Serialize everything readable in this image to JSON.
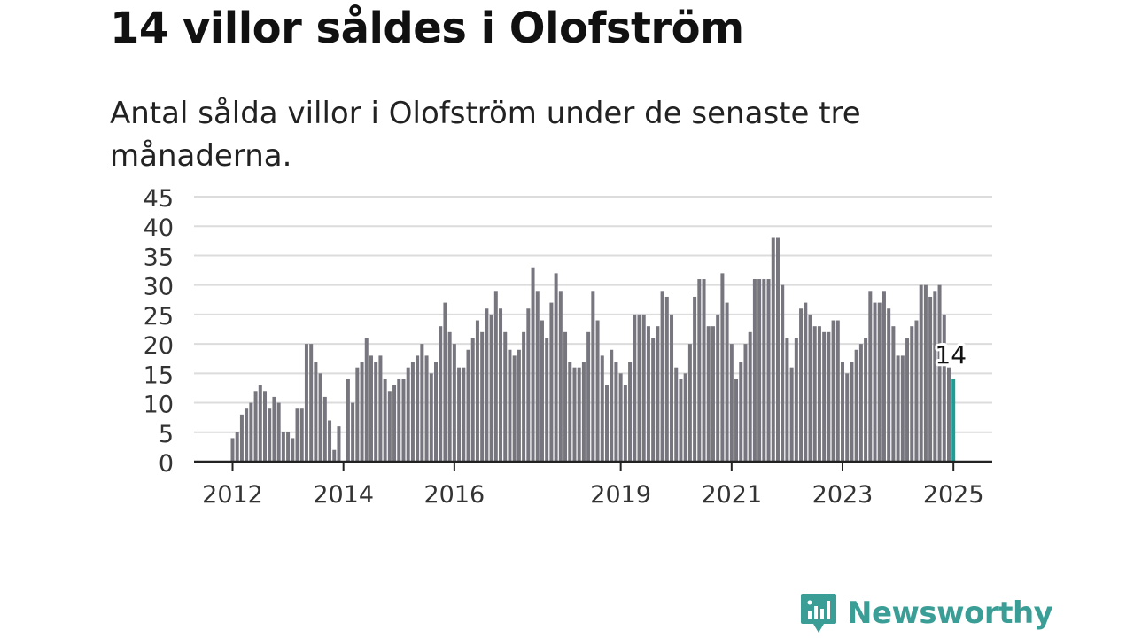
{
  "title": "14 villor såldes i Olofström",
  "subtitle": "Antal sålda villor i Olofström under de senaste tre månaderna.",
  "brand": {
    "name": "Newsworthy",
    "icon": "newsworthy-logo-icon"
  },
  "colors": {
    "bar": "#77767e",
    "highlight": "#1a9e96",
    "grid": "#dcdcdc",
    "axis": "#222222",
    "text": "#333333",
    "brand": "#3a9e96"
  },
  "chart_data": {
    "type": "bar",
    "title": "14 villor såldes i Olofström",
    "xlabel": "",
    "ylabel": "",
    "ylim": [
      0,
      45
    ],
    "yticks": [
      0,
      5,
      10,
      15,
      20,
      25,
      30,
      35,
      40,
      45
    ],
    "grid": true,
    "start": "2012-01",
    "frequency": "monthly",
    "xticks": [
      {
        "label": "2012",
        "month": "2012-01"
      },
      {
        "label": "2014",
        "month": "2014-01"
      },
      {
        "label": "2016",
        "month": "2016-01"
      },
      {
        "label": "2019",
        "month": "2019-01"
      },
      {
        "label": "2021",
        "month": "2021-01"
      },
      {
        "label": "2023",
        "month": "2023-01"
      },
      {
        "label": "2025",
        "month": "2025-01"
      }
    ],
    "values": [
      4,
      5,
      8,
      9,
      10,
      12,
      13,
      12,
      9,
      11,
      10,
      5,
      5,
      4,
      9,
      9,
      20,
      20,
      17,
      15,
      11,
      7,
      2,
      6,
      0,
      14,
      10,
      16,
      17,
      21,
      18,
      17,
      18,
      14,
      12,
      13,
      14,
      14,
      16,
      17,
      18,
      20,
      18,
      15,
      17,
      23,
      27,
      22,
      20,
      16,
      16,
      19,
      21,
      24,
      22,
      26,
      25,
      29,
      26,
      22,
      19,
      18,
      19,
      22,
      26,
      33,
      29,
      24,
      21,
      27,
      32,
      29,
      22,
      17,
      16,
      16,
      17,
      22,
      29,
      24,
      18,
      13,
      19,
      17,
      15,
      13,
      17,
      25,
      25,
      25,
      23,
      21,
      23,
      29,
      28,
      25,
      16,
      14,
      15,
      20,
      28,
      31,
      31,
      23,
      23,
      25,
      32,
      27,
      20,
      14,
      17,
      20,
      22,
      31,
      31,
      31,
      31,
      38,
      38,
      30,
      21,
      16,
      21,
      26,
      27,
      25,
      23,
      23,
      22,
      22,
      24,
      24,
      17,
      15,
      17,
      19,
      20,
      21,
      29,
      27,
      27,
      29,
      26,
      23,
      18,
      18,
      21,
      23,
      24,
      30,
      30,
      28,
      29,
      30,
      25,
      16,
      14
    ],
    "highlight": {
      "month": "2025-01",
      "value": 14,
      "label": "14"
    }
  }
}
